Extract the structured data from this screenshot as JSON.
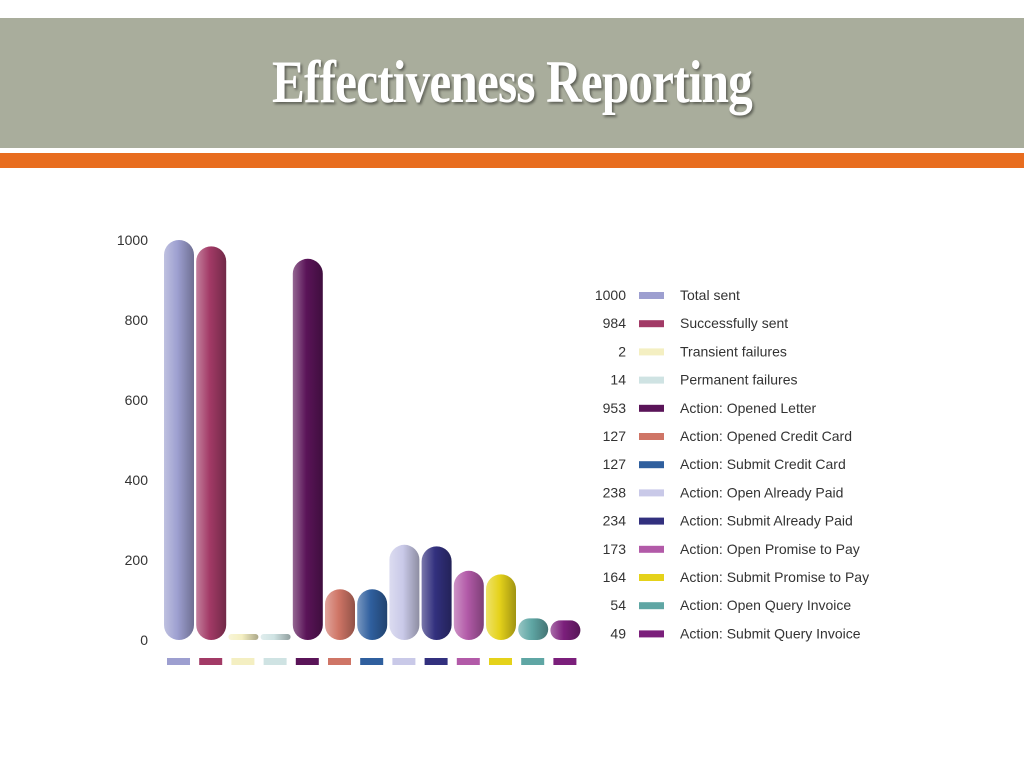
{
  "slide": {
    "title": "Effectiveness Reporting",
    "band_color": "#a9ad9c",
    "accent_color": "#e86d1f"
  },
  "chart_data": {
    "type": "bar",
    "title": "",
    "xlabel": "",
    "ylabel": "",
    "ylim": [
      0,
      1000
    ],
    "yticks": [
      0,
      200,
      400,
      600,
      800,
      1000
    ],
    "grid": false,
    "legend_position": "right",
    "categories": [
      "Total sent",
      "Successfully sent",
      "Transient failures",
      "Permanent failures",
      "Action: Opened Letter",
      "Action: Opened Credit Card",
      "Action: Submit Credit Card",
      "Action: Open Already Paid",
      "Action: Submit Already Paid",
      "Action: Open Promise to Pay",
      "Action: Submit Promise to Pay",
      "Action: Open Query Invoice",
      "Action: Submit Query Invoice"
    ],
    "values": [
      1000,
      984,
      2,
      14,
      953,
      127,
      127,
      238,
      234,
      173,
      164,
      54,
      49
    ],
    "colors": [
      "#9d9fd0",
      "#a23a66",
      "#f4efc2",
      "#cfe3e3",
      "#5a1458",
      "#cf7566",
      "#2f5f9e",
      "#c9c9e8",
      "#32307e",
      "#b25aa8",
      "#e5d21a",
      "#5fa6a4",
      "#7b1f7b"
    ]
  }
}
